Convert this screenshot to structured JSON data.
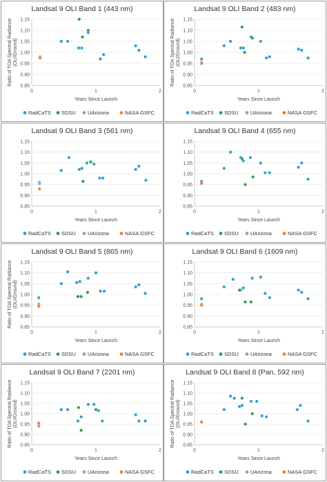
{
  "legend": [
    "RadCaTS",
    "SDSU",
    "UArizona",
    "NASA GSFC"
  ],
  "colors": {
    "RadCaTS": "#2e9fd0",
    "SDSU": "#2f9e44",
    "UArizona": "#9e9e9e",
    "NASA GSFC": "#ef7d32"
  },
  "chart_data": [
    {
      "type": "scatter",
      "title": "Landsat 9 OLI Band 1 (443 nm)",
      "xlabel": "Years Since Launch",
      "ylabel": "Ratio of TOA Spectral Radiance (OLI/Ground)",
      "xlim": [
        0,
        2
      ],
      "ylim": [
        0.85,
        1.15
      ],
      "xticks": [
        "0",
        "1",
        "2"
      ],
      "yticks": [
        "0.85",
        "0.90",
        "0.95",
        "1.00",
        "1.05",
        "1.10",
        "1.15"
      ],
      "series": [
        {
          "name": "RadCaTS",
          "x": [
            0.13,
            0.46,
            0.56,
            0.73,
            0.78,
            0.88,
            1.07,
            1.12,
            1.62,
            1.67,
            1.77
          ],
          "y": [
            0.98,
            1.05,
            1.05,
            1.02,
            1.02,
            1.09,
            0.97,
            0.99,
            1.03,
            1.01,
            0.98
          ]
        },
        {
          "name": "SDSU",
          "x": [
            0.74,
            0.79,
            0.88
          ],
          "y": [
            1.15,
            1.07,
            1.1
          ]
        },
        {
          "name": "UArizona",
          "x": [
            0.13
          ],
          "y": [
            0.98
          ]
        },
        {
          "name": "NASA GSFC",
          "x": [
            0.13
          ],
          "y": [
            0.975
          ]
        }
      ]
    },
    {
      "type": "scatter",
      "title": "Landsat 9 OLI Band 2 (483 nm)",
      "xlabel": "Years Since Launch",
      "ylabel": "Ratio of TOA Spectral Radiance (OLI/Ground)",
      "xlim": [
        0,
        2
      ],
      "ylim": [
        0.85,
        1.15
      ],
      "xticks": [
        "0",
        "1",
        "2"
      ],
      "yticks": [
        "0.85",
        "0.90",
        "0.95",
        "1.00",
        "1.05",
        "1.10",
        "1.15"
      ],
      "series": [
        {
          "name": "RadCaTS",
          "x": [
            0.11,
            0.46,
            0.56,
            0.72,
            0.76,
            0.88,
            1.03,
            1.12,
            1.17,
            1.62,
            1.67,
            1.77
          ],
          "y": [
            0.97,
            1.03,
            1.05,
            1.02,
            1.02,
            1.07,
            1.05,
            0.975,
            0.98,
            1.015,
            1.01,
            0.975
          ]
        },
        {
          "name": "SDSU",
          "x": [
            0.74,
            0.78,
            0.9
          ],
          "y": [
            1.115,
            1.0,
            1.065
          ]
        },
        {
          "name": "UArizona",
          "x": [
            0.11
          ],
          "y": [
            0.955
          ]
        },
        {
          "name": "NASA GSFC",
          "x": [
            0.11
          ],
          "y": [
            0.95
          ]
        }
      ]
    },
    {
      "type": "scatter",
      "title": "Landsat 9 OLI Band 3 (561 nm)",
      "xlabel": "Years Since Launch",
      "ylabel": "",
      "xlim": [
        0,
        2
      ],
      "ylim": [
        0.85,
        1.15
      ],
      "xticks": [
        "0",
        "1",
        "2"
      ],
      "yticks": [
        "0.85",
        "0.90",
        "0.95",
        "1.00",
        "1.05",
        "1.10",
        "1.15"
      ],
      "series": [
        {
          "name": "RadCaTS",
          "x": [
            0.12,
            0.46,
            0.58,
            0.74,
            0.78,
            0.86,
            0.97,
            1.06,
            1.11,
            1.62,
            1.67,
            1.78
          ],
          "y": [
            0.955,
            1.015,
            1.075,
            1.02,
            1.025,
            1.05,
            1.045,
            0.98,
            0.98,
            1.02,
            1.035,
            0.97
          ]
        },
        {
          "name": "SDSU",
          "x": [
            0.8,
            0.92
          ],
          "y": [
            0.965,
            1.055
          ]
        },
        {
          "name": "UArizona",
          "x": [
            0.12
          ],
          "y": [
            0.96
          ]
        },
        {
          "name": "NASA GSFC",
          "x": [
            0.12
          ],
          "y": [
            0.93
          ]
        }
      ]
    },
    {
      "type": "scatter",
      "title": "Landsat 9 OLI Band 4 (655 nm)",
      "xlabel": "Years Since Launch",
      "ylabel": "",
      "xlim": [
        0,
        2
      ],
      "ylim": [
        0.85,
        1.15
      ],
      "xticks": [
        "0",
        "1",
        "2"
      ],
      "yticks": [
        "0.85",
        "0.90",
        "0.95",
        "1.00",
        "1.05",
        "1.10",
        "1.15"
      ],
      "series": [
        {
          "name": "RadCaTS",
          "x": [
            0.11,
            0.46,
            0.56,
            0.72,
            0.76,
            0.87,
            1.03,
            1.1,
            1.17,
            1.62,
            1.67,
            1.77
          ],
          "y": [
            0.965,
            1.025,
            1.1,
            1.075,
            1.06,
            1.075,
            1.05,
            1.005,
            1.005,
            1.03,
            1.05,
            0.975
          ]
        },
        {
          "name": "SDSU",
          "x": [
            0.74,
            0.79,
            0.91
          ],
          "y": [
            1.07,
            0.95,
            0.985
          ]
        },
        {
          "name": "UArizona",
          "x": [
            0.11
          ],
          "y": [
            0.955
          ]
        },
        {
          "name": "NASA GSFC",
          "x": [
            0.11
          ],
          "y": [
            0.955
          ]
        }
      ]
    },
    {
      "type": "scatter",
      "title": "Landsat 9 OLI Band 5 (865 nm)",
      "xlabel": "Years Since Launch",
      "ylabel": "Ratio of TOA Spectral Radiance (OLI/Ground)",
      "xlim": [
        0,
        2
      ],
      "ylim": [
        0.85,
        1.15
      ],
      "xticks": [
        "0",
        "1",
        "2"
      ],
      "yticks": [
        "0.85",
        "0.90",
        "0.95",
        "1.00",
        "1.05",
        "1.10",
        "1.15"
      ],
      "series": [
        {
          "name": "RadCaTS",
          "x": [
            0.11,
            0.46,
            0.56,
            0.7,
            0.75,
            0.88,
            1.0,
            1.07,
            1.13,
            1.62,
            1.67,
            1.77
          ],
          "y": [
            0.985,
            1.05,
            1.105,
            1.055,
            1.06,
            1.075,
            1.1,
            1.015,
            1.015,
            1.035,
            1.045,
            1.005
          ]
        },
        {
          "name": "SDSU",
          "x": [
            0.72,
            0.77,
            0.87
          ],
          "y": [
            0.99,
            0.99,
            1.01
          ]
        },
        {
          "name": "UArizona",
          "x": [
            0.11
          ],
          "y": [
            0.955
          ]
        },
        {
          "name": "NASA GSFC",
          "x": [
            0.11
          ],
          "y": [
            0.945
          ]
        }
      ]
    },
    {
      "type": "scatter",
      "title": "Landsat 9 OLI Band 6 (1609 nm)",
      "xlabel": "Years Since Launch",
      "ylabel": "",
      "xlim": [
        0,
        2
      ],
      "ylim": [
        0.85,
        1.15
      ],
      "xticks": [
        "0",
        "1",
        "2"
      ],
      "yticks": [
        "0.85",
        "0.90",
        "0.95",
        "1.00",
        "1.05",
        "1.10",
        "1.15"
      ],
      "series": [
        {
          "name": "RadCaTS",
          "x": [
            0.11,
            0.46,
            0.6,
            0.72,
            0.76,
            0.9,
            1.03,
            1.1,
            1.17,
            1.62,
            1.67,
            1.77
          ],
          "y": [
            0.98,
            1.035,
            1.07,
            1.02,
            1.03,
            1.075,
            1.08,
            1.005,
            0.985,
            1.02,
            1.01,
            0.98
          ]
        },
        {
          "name": "SDSU",
          "x": [
            0.7,
            0.79,
            0.88
          ],
          "y": [
            1.02,
            0.965,
            0.965
          ]
        },
        {
          "name": "UArizona",
          "x": [
            0.11
          ],
          "y": [
            0.955
          ]
        },
        {
          "name": "NASA GSFC",
          "x": [
            0.11
          ],
          "y": [
            0.95
          ]
        }
      ]
    },
    {
      "type": "scatter",
      "title": "Landsat 9 OLI Band 7 (2201 nm)",
      "xlabel": "Years Since Launch",
      "ylabel": "Ratio of TOA Spectral Radiance (OLI/Ground)",
      "xlim": [
        0,
        2
      ],
      "ylim": [
        0.85,
        1.15
      ],
      "xticks": [
        "0",
        "1",
        "2"
      ],
      "yticks": [
        "0.85",
        "0.90",
        "0.95",
        "1.00",
        "1.05",
        "1.10",
        "1.15"
      ],
      "series": [
        {
          "name": "RadCaTS",
          "x": [
            0.11,
            0.46,
            0.56,
            0.72,
            0.77,
            0.88,
            0.97,
            1.04,
            1.1,
            1.62,
            1.67,
            1.77
          ],
          "y": [
            0.95,
            1.02,
            1.02,
            0.965,
            0.985,
            1.045,
            1.045,
            1.015,
            0.965,
            0.995,
            0.965,
            0.965
          ]
        },
        {
          "name": "SDSU",
          "x": [
            0.73,
            0.77,
            1.0
          ],
          "y": [
            1.03,
            0.92,
            1.02
          ]
        },
        {
          "name": "UArizona",
          "x": [
            0.11
          ],
          "y": [
            0.94
          ]
        },
        {
          "name": "NASA GSFC",
          "x": [
            0.11
          ],
          "y": [
            0.955
          ]
        }
      ]
    },
    {
      "type": "scatter",
      "title": "Landsat 9 OLI Band 8 (Pan, 592 nm)",
      "xlabel": "Years Since Launch",
      "ylabel": "Ratio of TOA Spectral Radiance (OLI/Ground)",
      "xlim": [
        0,
        2
      ],
      "ylim": [
        0.85,
        1.15
      ],
      "xticks": [
        "0",
        "1",
        "2"
      ],
      "yticks": [
        "0.85",
        "0.90",
        "0.95",
        "1.00",
        "1.05",
        "1.10",
        "1.15"
      ],
      "series": [
        {
          "name": "RadCaTS",
          "x": [
            0.11,
            0.46,
            0.56,
            0.62,
            0.7,
            0.74,
            0.88,
            0.97,
            1.05,
            1.12,
            1.6,
            1.65,
            1.77
          ],
          "y": [
            0.96,
            1.02,
            1.085,
            1.075,
            1.035,
            1.04,
            1.06,
            1.06,
            0.99,
            0.985,
            1.02,
            1.04,
            0.965
          ]
        },
        {
          "name": "SDSU",
          "x": [
            0.74,
            0.79,
            0.9
          ],
          "y": [
            1.075,
            0.95,
            1.0
          ]
        },
        {
          "name": "UArizona",
          "x": [
            0.11
          ],
          "y": [
            0.96
          ]
        },
        {
          "name": "NASA GSFC",
          "x": [
            0.11
          ],
          "y": [
            0.96
          ]
        }
      ]
    }
  ]
}
